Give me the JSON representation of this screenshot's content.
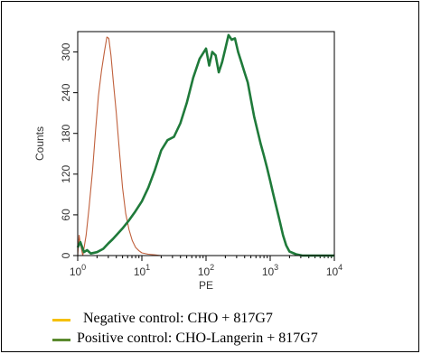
{
  "chart_data": {
    "type": "histogram",
    "xlabel": "PE",
    "ylabel": "Counts",
    "x_scale": "log",
    "xlim": [
      1,
      10000
    ],
    "ylim": [
      0,
      330
    ],
    "x_ticks": [
      {
        "value": 1,
        "base": "10",
        "exp": "0"
      },
      {
        "value": 10,
        "base": "10",
        "exp": "1"
      },
      {
        "value": 100,
        "base": "10",
        "exp": "2"
      },
      {
        "value": 1000,
        "base": "10",
        "exp": "3"
      },
      {
        "value": 10000,
        "base": "10",
        "exp": "4"
      }
    ],
    "y_ticks": [
      "0",
      "60",
      "120",
      "180",
      "240",
      "300"
    ],
    "series": [
      {
        "name": "Negative control: CHO + 817G7",
        "line_color": "#c0603c",
        "legend_color": "#f5c000",
        "points": [
          [
            1.0,
            0
          ],
          [
            1.05,
            30
          ],
          [
            1.1,
            18
          ],
          [
            1.2,
            0
          ],
          [
            1.35,
            30
          ],
          [
            1.5,
            70
          ],
          [
            1.7,
            125
          ],
          [
            1.9,
            185
          ],
          [
            2.1,
            235
          ],
          [
            2.35,
            272
          ],
          [
            2.6,
            300
          ],
          [
            2.85,
            322
          ],
          [
            3.05,
            320
          ],
          [
            3.3,
            295
          ],
          [
            3.6,
            255
          ],
          [
            4.0,
            210
          ],
          [
            4.5,
            150
          ],
          [
            5.0,
            100
          ],
          [
            5.6,
            62
          ],
          [
            6.3,
            38
          ],
          [
            7.1,
            22
          ],
          [
            8.0,
            12
          ],
          [
            9.0,
            7
          ],
          [
            10.0,
            4
          ],
          [
            12.6,
            2
          ],
          [
            15.8,
            1
          ],
          [
            20,
            0
          ],
          [
            100,
            0
          ]
        ]
      },
      {
        "name": "Positive control: CHO-Langerin + 817G7",
        "line_color": "#1f7a3a",
        "legend_color": "#5a8a2e",
        "points": [
          [
            1.0,
            12
          ],
          [
            1.1,
            20
          ],
          [
            1.25,
            5
          ],
          [
            1.4,
            8
          ],
          [
            1.6,
            3
          ],
          [
            2.0,
            5
          ],
          [
            2.5,
            10
          ],
          [
            3.0,
            18
          ],
          [
            3.5,
            24
          ],
          [
            4.0,
            30
          ],
          [
            5.0,
            40
          ],
          [
            6.3,
            52
          ],
          [
            7.9,
            65
          ],
          [
            10.0,
            80
          ],
          [
            12.6,
            100
          ],
          [
            15.8,
            125
          ],
          [
            20.0,
            155
          ],
          [
            25.1,
            170
          ],
          [
            31.6,
            175
          ],
          [
            39.8,
            195
          ],
          [
            50.1,
            225
          ],
          [
            63.1,
            262
          ],
          [
            79.4,
            290
          ],
          [
            100,
            305
          ],
          [
            112,
            280
          ],
          [
            125,
            300
          ],
          [
            141,
            295
          ],
          [
            158,
            270
          ],
          [
            178,
            285
          ],
          [
            200,
            305
          ],
          [
            224,
            325
          ],
          [
            251,
            318
          ],
          [
            282,
            320
          ],
          [
            316,
            300
          ],
          [
            355,
            285
          ],
          [
            398,
            270
          ],
          [
            447,
            255
          ],
          [
            501,
            230
          ],
          [
            562,
            205
          ],
          [
            631,
            185
          ],
          [
            708,
            165
          ],
          [
            794,
            148
          ],
          [
            891,
            130
          ],
          [
            1000,
            110
          ],
          [
            1122,
            90
          ],
          [
            1259,
            70
          ],
          [
            1413,
            50
          ],
          [
            1585,
            30
          ],
          [
            1778,
            15
          ],
          [
            1995,
            6
          ],
          [
            2512,
            2
          ],
          [
            3162,
            0
          ],
          [
            10000,
            0
          ]
        ]
      }
    ]
  }
}
